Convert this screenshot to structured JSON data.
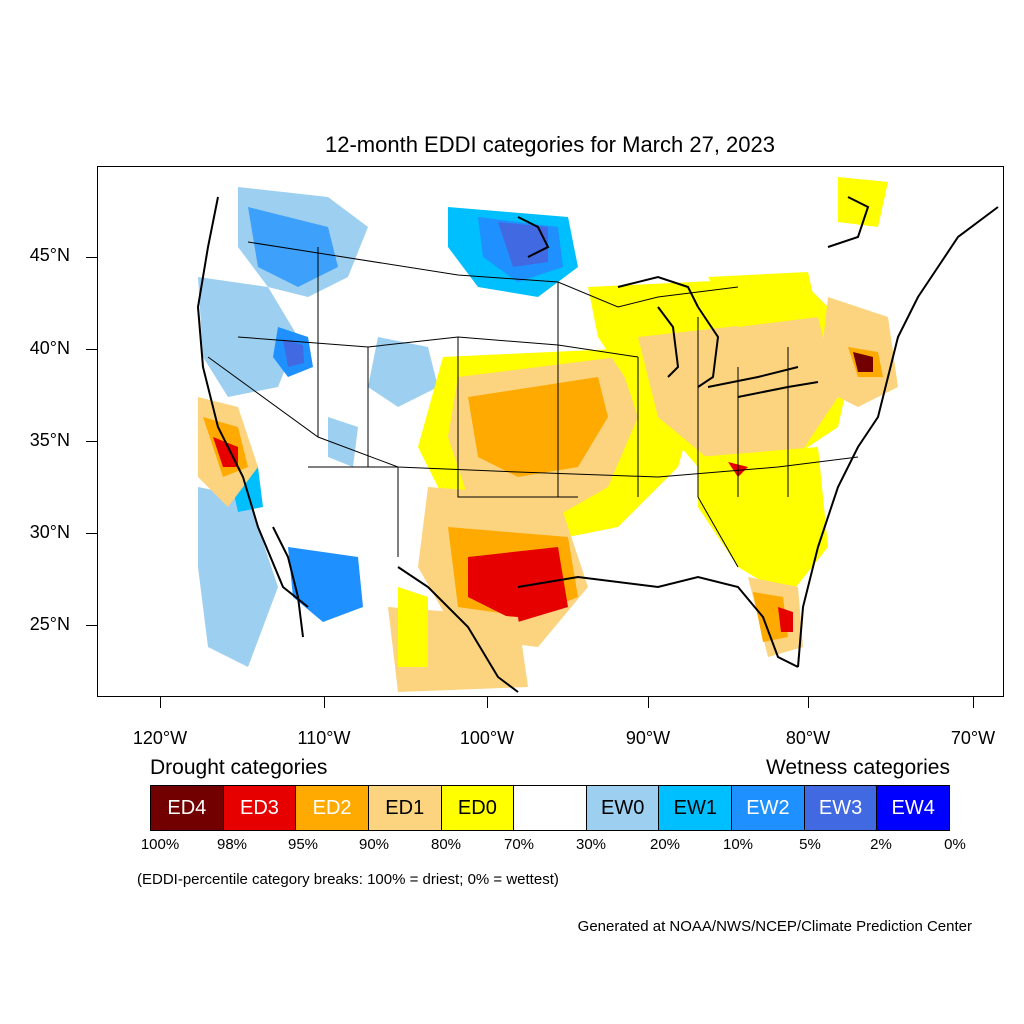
{
  "title": "12-month EDDI categories for March 27, 2023",
  "lat_labels": [
    "45°N",
    "40°N",
    "35°N",
    "30°N",
    "25°N"
  ],
  "lon_labels": [
    "120°W",
    "110°W",
    "100°W",
    "90°W",
    "80°W",
    "70°W"
  ],
  "legend": {
    "drought_title": "Drought categories",
    "wetness_title": "Wetness categories",
    "categories": [
      {
        "label": "ED4",
        "color": "#730000",
        "text_color": "#ffffff"
      },
      {
        "label": "ED3",
        "color": "#e60000",
        "text_color": "#ffffff"
      },
      {
        "label": "ED2",
        "color": "#ffaa00",
        "text_color": "#ffffff"
      },
      {
        "label": "ED1",
        "color": "#fcd37f",
        "text_color": "#000000"
      },
      {
        "label": "ED0",
        "color": "#ffff00",
        "text_color": "#000000"
      },
      {
        "label": "",
        "color": "#ffffff",
        "text_color": "#000000"
      },
      {
        "label": "EW0",
        "color": "#9dcff0",
        "text_color": "#000000"
      },
      {
        "label": "EW1",
        "color": "#00bfff",
        "text_color": "#000000"
      },
      {
        "label": "EW2",
        "color": "#1e90ff",
        "text_color": "#ffffff"
      },
      {
        "label": "EW3",
        "color": "#4169e1",
        "text_color": "#ffffff"
      },
      {
        "label": "EW4",
        "color": "#0000ff",
        "text_color": "#ffffff"
      }
    ],
    "breaks": [
      "100%",
      "98%",
      "95%",
      "90%",
      "80%",
      "70%",
      "30%",
      "20%",
      "10%",
      "5%",
      "2%",
      "0%"
    ]
  },
  "note": "(EDDI-percentile category breaks: 100% = driest; 0% = wettest)",
  "credit": "Generated at NOAA/NWS/NCEP/Climate Prediction Center"
}
